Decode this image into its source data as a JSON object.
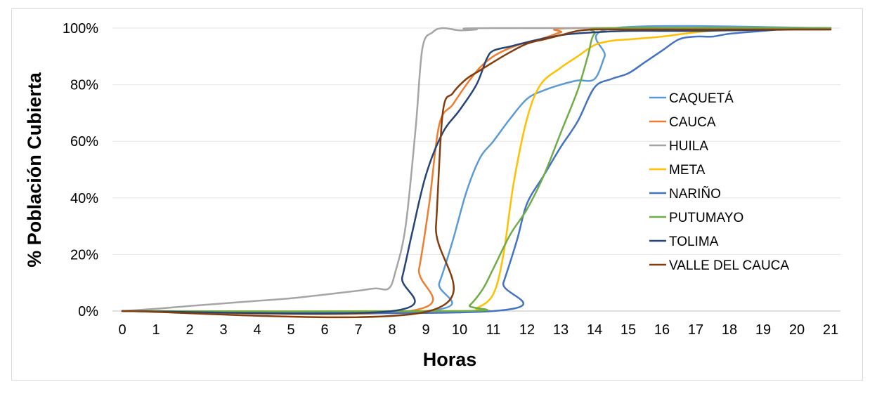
{
  "chart_data": {
    "type": "line",
    "title": "",
    "xlabel": "Horas",
    "ylabel": "% Población Cubierta",
    "x_ticks": [
      "0",
      "1",
      "2",
      "3",
      "4",
      "5",
      "6",
      "7",
      "8",
      "9",
      "10",
      "11",
      "12",
      "13",
      "14",
      "15",
      "16",
      "17",
      "18",
      "19",
      "20",
      "21"
    ],
    "y_ticks": [
      "0%",
      "20%",
      "40%",
      "60%",
      "80%",
      "100%"
    ],
    "xlim": [
      0,
      21
    ],
    "ylim": [
      0,
      100
    ],
    "grid": "horizontal",
    "legend_position": "right",
    "series": [
      {
        "name": "CAQUETÁ",
        "color": "#5b9bd5",
        "points": [
          [
            0,
            0
          ],
          [
            9,
            0
          ],
          [
            9.4,
            10
          ],
          [
            9.8,
            25
          ],
          [
            10.2,
            42
          ],
          [
            10.6,
            54
          ],
          [
            11,
            60
          ],
          [
            11.5,
            68
          ],
          [
            12,
            75
          ],
          [
            12.5,
            78
          ],
          [
            13,
            80
          ],
          [
            13.5,
            81.5
          ],
          [
            14,
            82
          ],
          [
            14.3,
            90
          ],
          [
            14.6,
            100
          ],
          [
            21,
            100
          ]
        ]
      },
      {
        "name": "CAUCA",
        "color": "#ed7d31",
        "points": [
          [
            0,
            0
          ],
          [
            8.5,
            0
          ],
          [
            8.8,
            15
          ],
          [
            9.1,
            38
          ],
          [
            9.4,
            66
          ],
          [
            9.8,
            73
          ],
          [
            10.2,
            80
          ],
          [
            10.6,
            86
          ],
          [
            11,
            90
          ],
          [
            11.5,
            93
          ],
          [
            12,
            95
          ],
          [
            12.5,
            96.5
          ],
          [
            13,
            98.5
          ],
          [
            13.5,
            100
          ],
          [
            21,
            100
          ]
        ]
      },
      {
        "name": "HUILA",
        "color": "#a5a5a5",
        "points": [
          [
            0,
            0
          ],
          [
            1,
            0.8
          ],
          [
            2,
            1.8
          ],
          [
            3,
            2.7
          ],
          [
            4,
            3.6
          ],
          [
            5,
            4.5
          ],
          [
            6,
            5.8
          ],
          [
            7,
            7.2
          ],
          [
            7.5,
            8
          ],
          [
            7.9,
            8
          ],
          [
            8.1,
            14
          ],
          [
            8.4,
            30
          ],
          [
            8.7,
            65
          ],
          [
            8.9,
            93
          ],
          [
            9.2,
            98.5
          ],
          [
            9.5,
            100
          ],
          [
            10,
            99.2
          ],
          [
            10.5,
            99.5
          ],
          [
            11,
            100
          ],
          [
            21,
            100
          ]
        ]
      },
      {
        "name": "META",
        "color": "#ffc000",
        "points": [
          [
            0,
            0
          ],
          [
            10,
            0
          ],
          [
            10.5,
            1
          ],
          [
            11,
            6
          ],
          [
            11.3,
            20
          ],
          [
            11.6,
            45
          ],
          [
            12,
            68
          ],
          [
            12.4,
            80
          ],
          [
            13,
            86
          ],
          [
            13.5,
            90
          ],
          [
            14,
            94
          ],
          [
            14.5,
            95.5
          ],
          [
            15,
            96
          ],
          [
            16,
            97
          ],
          [
            17,
            98.5
          ],
          [
            18,
            99.5
          ],
          [
            19,
            100
          ],
          [
            21,
            100
          ]
        ]
      },
      {
        "name": "NARIÑO",
        "color": "#4472c4",
        "points": [
          [
            0,
            0
          ],
          [
            11,
            0
          ],
          [
            11.3,
            10
          ],
          [
            11.7,
            25
          ],
          [
            12,
            38
          ],
          [
            12.5,
            48
          ],
          [
            13,
            58
          ],
          [
            13.5,
            67
          ],
          [
            14,
            79
          ],
          [
            14.5,
            82
          ],
          [
            15,
            84
          ],
          [
            15.5,
            88
          ],
          [
            16,
            92
          ],
          [
            16.5,
            96
          ],
          [
            17,
            97
          ],
          [
            17.5,
            97
          ],
          [
            18,
            98
          ],
          [
            19,
            99
          ],
          [
            20,
            100
          ],
          [
            21,
            100
          ]
        ]
      },
      {
        "name": "PUTUMAYO",
        "color": "#70ad47",
        "points": [
          [
            0,
            0
          ],
          [
            10,
            0
          ],
          [
            10.3,
            2
          ],
          [
            10.7,
            8
          ],
          [
            11,
            15
          ],
          [
            11.5,
            27
          ],
          [
            12,
            36
          ],
          [
            12.5,
            48
          ],
          [
            13,
            63
          ],
          [
            13.5,
            78
          ],
          [
            13.8,
            90
          ],
          [
            14,
            98
          ],
          [
            14.5,
            100
          ],
          [
            21,
            100
          ]
        ]
      },
      {
        "name": "TOLIMA",
        "color": "#264478",
        "points": [
          [
            0,
            0
          ],
          [
            8,
            0
          ],
          [
            8.3,
            12
          ],
          [
            8.6,
            28
          ],
          [
            9,
            48
          ],
          [
            9.5,
            63
          ],
          [
            10,
            71
          ],
          [
            10.5,
            80
          ],
          [
            10.8,
            89
          ],
          [
            11,
            92
          ],
          [
            11.5,
            93.5
          ],
          [
            12,
            95
          ],
          [
            13,
            97.5
          ],
          [
            14,
            98.5
          ],
          [
            15,
            99
          ],
          [
            16,
            99
          ],
          [
            17,
            99
          ],
          [
            18,
            99.2
          ],
          [
            19,
            99.3
          ],
          [
            20,
            99.5
          ],
          [
            21,
            99.5
          ]
        ]
      },
      {
        "name": "VALLE DEL CAUCA",
        "color": "#843c0c",
        "points": [
          [
            0,
            0
          ],
          [
            9.1,
            0
          ],
          [
            9.3,
            30
          ],
          [
            9.5,
            70
          ],
          [
            9.8,
            77
          ],
          [
            10.2,
            82
          ],
          [
            10.6,
            85
          ],
          [
            11,
            88
          ],
          [
            11.5,
            91.5
          ],
          [
            12,
            94.5
          ],
          [
            12.5,
            96
          ],
          [
            13,
            97.5
          ],
          [
            13.5,
            99
          ],
          [
            14,
            99.5
          ],
          [
            15,
            99.5
          ],
          [
            16,
            99.5
          ],
          [
            17,
            99.5
          ],
          [
            18,
            99.5
          ],
          [
            19,
            99.5
          ],
          [
            20,
            99.5
          ],
          [
            21,
            99.5
          ]
        ]
      }
    ]
  }
}
